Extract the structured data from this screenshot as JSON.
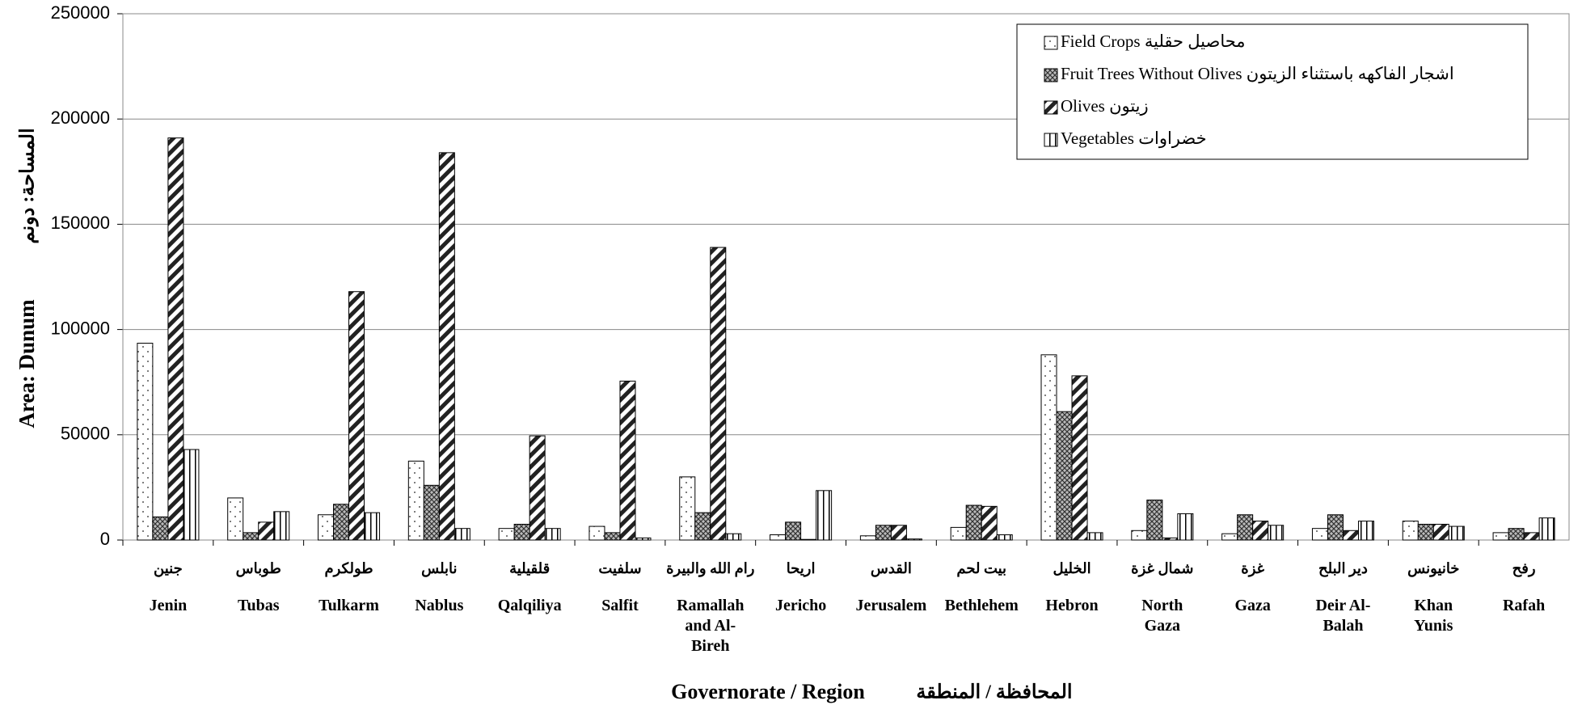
{
  "chart_data": {
    "type": "bar",
    "y_label": "Area: Dunum",
    "y_label_ar": "المساحة: دونم",
    "x_label": "Governorate / Region",
    "x_label_ar": "المحافظة / المنطقة",
    "categories": [
      "Jenin",
      "Tubas",
      "Tulkarm",
      "Nablus",
      "Qalqiliya",
      "Salfit",
      "Ramallah and Al-Bireh",
      "Jericho",
      "Jerusalem",
      "Bethlehem",
      "Hebron",
      "North Gaza",
      "Gaza",
      "Deir Al-Balah",
      "Khan Yunis",
      "Rafah"
    ],
    "categories_ar": [
      "جنين",
      "طوباس",
      "طولكرم",
      "نابلس",
      "قلقيلية",
      "سلفيت",
      "رام الله والبيرة",
      "اريحا",
      "القدس",
      "بيت لحم",
      "الخليل",
      "شمال غزة",
      "غزة",
      "دير البلح",
      "خانيونس",
      "رفح"
    ],
    "series": [
      {
        "name": "Field Crops محاصيل حقلية",
        "color": "#000000",
        "pattern": "dots",
        "values": [
          93500,
          20000,
          12000,
          37500,
          5500,
          6500,
          30000,
          2500,
          2000,
          6000,
          88000,
          4500,
          3000,
          5500,
          9000,
          3500
        ]
      },
      {
        "name": "Fruit Trees Without Olives اشجار الفاكهه باستثناء الزيتون",
        "color": "#000000",
        "pattern": "crosshatch",
        "values": [
          11000,
          3500,
          17000,
          26000,
          7500,
          3500,
          13000,
          8500,
          7000,
          16500,
          61000,
          19000,
          12000,
          12000,
          7500,
          5500
        ]
      },
      {
        "name": "Olives زيتون",
        "color": "#000000",
        "pattern": "diagonal",
        "values": [
          191000,
          8500,
          118000,
          184000,
          49500,
          75500,
          139000,
          300,
          7000,
          16000,
          78000,
          1000,
          9000,
          4500,
          7500,
          3500
        ]
      },
      {
        "name": "Vegetables خضراوات",
        "color": "#000000",
        "pattern": "vertical",
        "values": [
          43000,
          13500,
          13000,
          5500,
          5500,
          1000,
          3000,
          23500,
          500,
          2500,
          3500,
          12500,
          7000,
          9000,
          6500,
          10500
        ]
      }
    ],
    "ylim": [
      0,
      250000
    ],
    "yticks": [
      0,
      50000,
      100000,
      150000,
      200000,
      250000
    ],
    "grid": true,
    "legend": "top-right"
  }
}
